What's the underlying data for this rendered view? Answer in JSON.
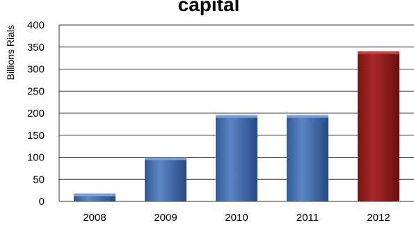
{
  "chart_data": {
    "type": "bar",
    "title": "capital",
    "xlabel": "",
    "ylabel": "Billions Rials",
    "categories": [
      "2008",
      "2009",
      "2010",
      "2011",
      "2012"
    ],
    "values": [
      18,
      100,
      196,
      196,
      340
    ],
    "ylim": [
      0,
      400
    ],
    "yticks": [
      0,
      50,
      100,
      150,
      200,
      250,
      300,
      350,
      400
    ],
    "grid": true,
    "legend": "none",
    "colors": {
      "default_bar": "#3b65a8",
      "highlight_bar": "#8f1a1a",
      "highlight_category": "2012"
    }
  }
}
